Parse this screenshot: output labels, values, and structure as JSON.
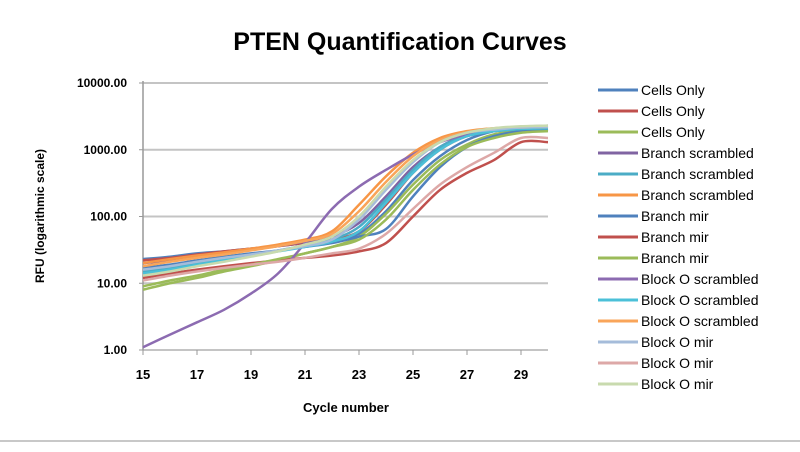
{
  "chart_data": {
    "type": "line",
    "title": "PTEN Quantification Curves",
    "xlabel": "Cycle number",
    "ylabel": "RFU (logarithmic scale)",
    "xlim": [
      15,
      30
    ],
    "ylim": [
      1,
      10000
    ],
    "yscale": "log",
    "grid": "horizontal",
    "legend_position": "right",
    "x_ticks": [
      "15",
      "17",
      "19",
      "21",
      "23",
      "25",
      "27",
      "29"
    ],
    "y_ticks": [
      "1.00",
      "10.00",
      "100.00",
      "1000.00",
      "10000.00"
    ],
    "x": [
      15,
      16,
      17,
      18,
      19,
      20,
      21,
      22,
      23,
      24,
      25,
      26,
      27,
      28,
      29,
      30
    ],
    "series": [
      {
        "name": "Cells Only",
        "color": "#4F81BD",
        "values": [
          23,
          25,
          28,
          30,
          33,
          36,
          40,
          45,
          55,
          120,
          350,
          800,
          1400,
          1900,
          2100,
          2150
        ]
      },
      {
        "name": "Cells Only",
        "color": "#C0504D",
        "values": [
          22,
          24,
          27,
          30,
          33,
          36,
          40,
          45,
          60,
          150,
          450,
          1000,
          1600,
          1900,
          2000,
          2050
        ]
      },
      {
        "name": "Cells Only",
        "color": "#9BBB59",
        "values": [
          8,
          10,
          12,
          15,
          18,
          22,
          28,
          35,
          50,
          110,
          300,
          700,
          1200,
          1700,
          1900,
          2000
        ]
      },
      {
        "name": "Branch scrambled",
        "color": "#8064A2",
        "values": [
          20,
          22,
          25,
          28,
          32,
          36,
          42,
          50,
          80,
          200,
          550,
          1100,
          1700,
          2000,
          2150,
          2200
        ]
      },
      {
        "name": "Branch scrambled",
        "color": "#4BACC6",
        "values": [
          15,
          17,
          20,
          23,
          27,
          31,
          37,
          45,
          70,
          180,
          500,
          1100,
          1600,
          1900,
          2050,
          2100
        ]
      },
      {
        "name": "Branch scrambled",
        "color": "#F79646",
        "values": [
          20,
          23,
          26,
          29,
          33,
          38,
          45,
          60,
          150,
          400,
          900,
          1500,
          1900,
          2100,
          2200,
          2250
        ]
      },
      {
        "name": "Branch mir",
        "color": "#4F81BD",
        "values": [
          17,
          19,
          22,
          25,
          28,
          31,
          35,
          40,
          50,
          65,
          200,
          550,
          1100,
          1600,
          1900,
          2000
        ]
      },
      {
        "name": "Branch mir",
        "color": "#C0504D",
        "values": [
          12,
          14,
          16,
          18,
          20,
          22,
          24,
          26,
          30,
          40,
          100,
          250,
          450,
          700,
          1300,
          1300
        ]
      },
      {
        "name": "Branch mir",
        "color": "#9BBB59",
        "values": [
          9,
          11,
          13,
          16,
          19,
          23,
          28,
          35,
          45,
          90,
          250,
          600,
          1100,
          1500,
          1800,
          1900
        ]
      },
      {
        "name": "Block O scrambled",
        "color": "#8C6BB1",
        "values": [
          1.1,
          1.7,
          2.6,
          4,
          7,
          14,
          40,
          130,
          280,
          500,
          850,
          1300,
          1700,
          2000,
          2200,
          2300
        ]
      },
      {
        "name": "Block O scrambled",
        "color": "#4BC0D8",
        "values": [
          14,
          16,
          19,
          22,
          26,
          30,
          35,
          42,
          60,
          160,
          450,
          1000,
          1600,
          1900,
          2050,
          2100
        ]
      },
      {
        "name": "Block O scrambled",
        "color": "#F9A55A",
        "values": [
          18,
          21,
          24,
          27,
          31,
          36,
          43,
          55,
          120,
          330,
          800,
          1400,
          1850,
          2050,
          2150,
          2200
        ]
      },
      {
        "name": "Block O mir",
        "color": "#A5BCDA",
        "values": [
          16,
          18,
          21,
          24,
          27,
          31,
          36,
          45,
          90,
          250,
          650,
          1300,
          1800,
          2000,
          2150,
          2200
        ]
      },
      {
        "name": "Block O mir",
        "color": "#DDA8A7",
        "values": [
          11,
          13,
          15,
          17,
          19,
          21,
          24,
          28,
          33,
          55,
          130,
          300,
          550,
          900,
          1500,
          1500
        ]
      },
      {
        "name": "Block O mir",
        "color": "#C8DAAE",
        "values": [
          13,
          15,
          18,
          21,
          25,
          30,
          38,
          50,
          100,
          280,
          700,
          1300,
          1800,
          2100,
          2250,
          2300
        ]
      }
    ]
  }
}
